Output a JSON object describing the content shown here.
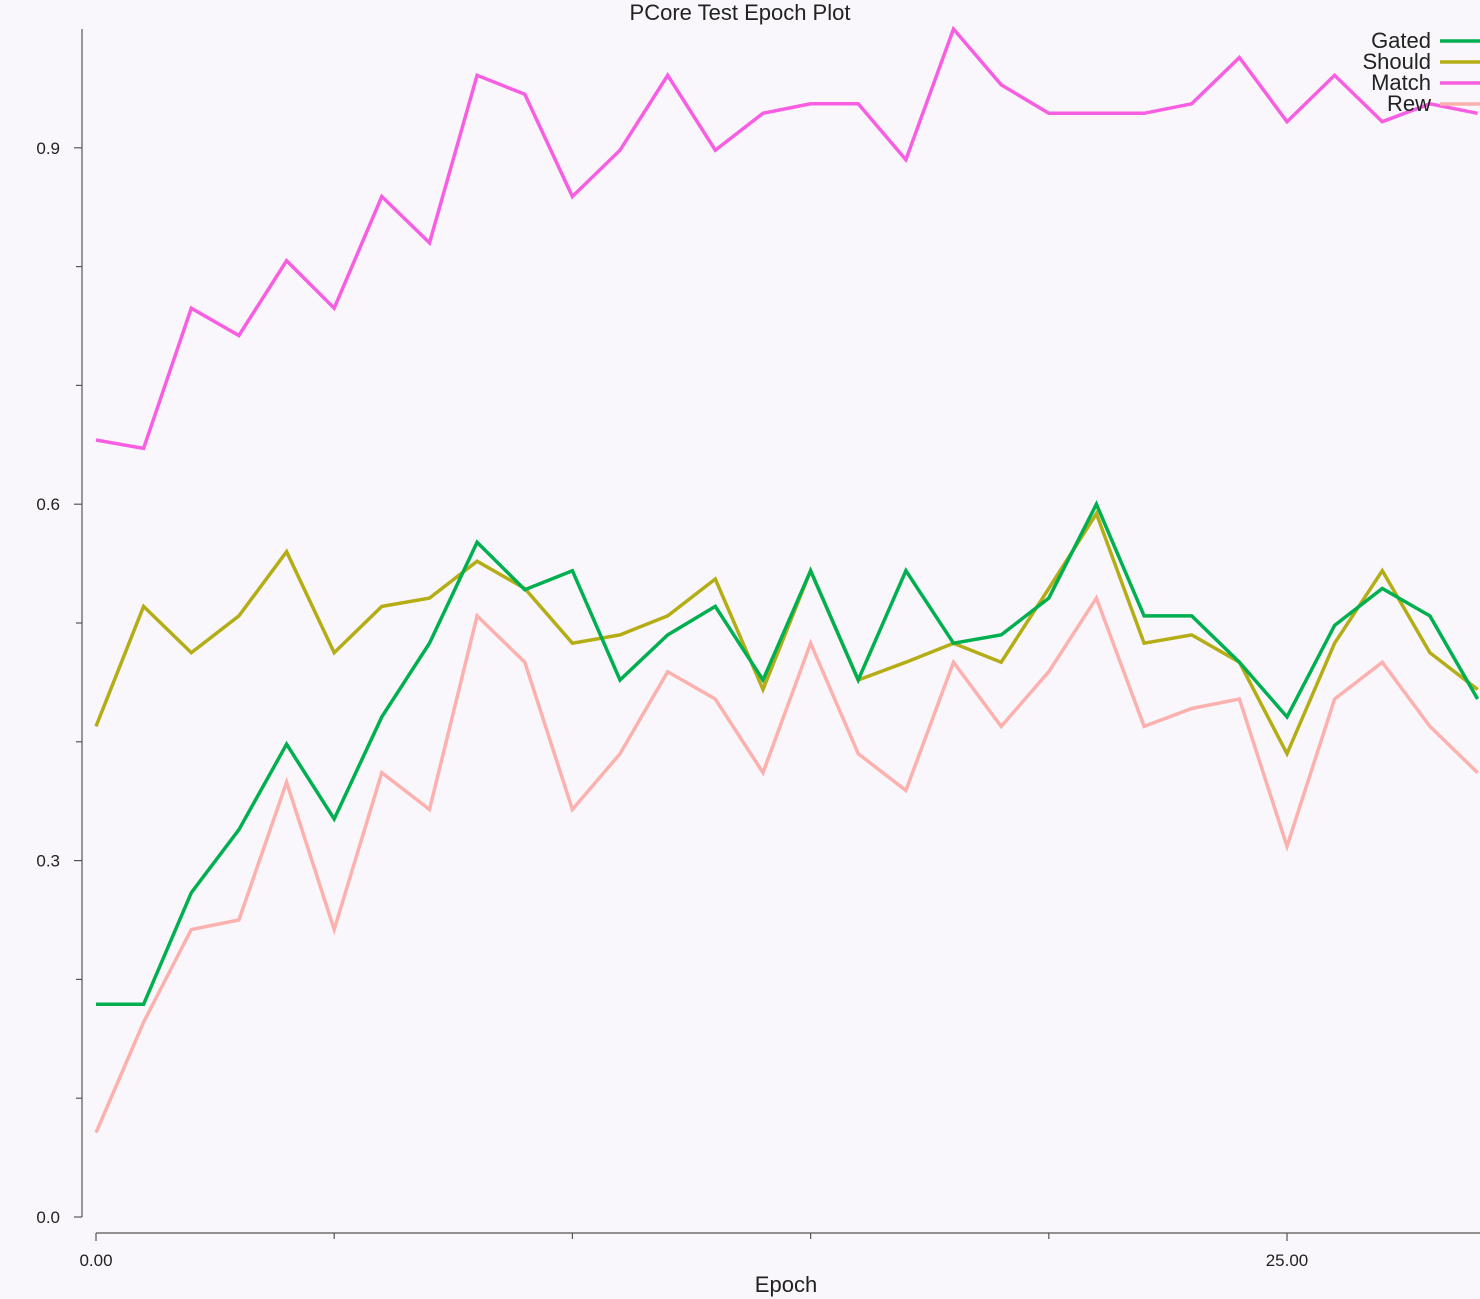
{
  "chart_data": {
    "type": "line",
    "title": "PCore Test Epoch Plot",
    "xlabel": "Epoch",
    "ylabel": "",
    "xlim": [
      0,
      29
    ],
    "ylim": [
      0,
      1.0
    ],
    "x_ticks_major": [
      0,
      25
    ],
    "x_tick_labels": [
      "0.00",
      "25.00"
    ],
    "x_ticks_minor": [
      5,
      10,
      15,
      20
    ],
    "y_ticks_major": [
      0,
      0.3,
      0.6,
      0.9
    ],
    "y_tick_labels": [
      "0.0",
      "0.3",
      "0.6",
      "0.9"
    ],
    "y_ticks_minor": [
      0.1,
      0.2,
      0.4,
      0.5,
      0.7,
      0.8
    ],
    "grid": false,
    "legend_position": "top-right",
    "x": [
      0,
      1,
      2,
      3,
      4,
      5,
      6,
      7,
      8,
      9,
      10,
      11,
      12,
      13,
      14,
      15,
      16,
      17,
      18,
      19,
      20,
      21,
      22,
      23,
      24,
      25,
      26,
      27,
      28,
      29
    ],
    "series": [
      {
        "name": "Gated",
        "color": "#00b050",
        "values": [
          0.179,
          0.179,
          0.273,
          0.326,
          0.398,
          0.335,
          0.421,
          0.483,
          0.568,
          0.528,
          0.544,
          0.452,
          0.49,
          0.514,
          0.452,
          0.544,
          0.452,
          0.544,
          0.483,
          0.49,
          0.521,
          0.6,
          0.506,
          0.506,
          0.467,
          0.421,
          0.498,
          0.529,
          0.506,
          0.436
        ]
      },
      {
        "name": "Should",
        "color": "#b5ad16",
        "values": [
          0.413,
          0.514,
          0.475,
          0.506,
          0.56,
          0.475,
          0.514,
          0.521,
          0.552,
          0.529,
          0.483,
          0.49,
          0.506,
          0.537,
          0.444,
          0.544,
          0.452,
          0.467,
          0.483,
          0.467,
          0.529,
          0.592,
          0.483,
          0.49,
          0.467,
          0.39,
          0.483,
          0.544,
          0.475,
          0.444
        ]
      },
      {
        "name": "Match",
        "color": "#f85ee2",
        "values": [
          0.654,
          0.647,
          0.765,
          0.742,
          0.805,
          0.765,
          0.859,
          0.82,
          0.961,
          0.945,
          0.859,
          0.898,
          0.961,
          0.898,
          0.929,
          0.937,
          0.937,
          0.89,
          1.0,
          0.953,
          0.929,
          0.929,
          0.929,
          0.937,
          0.976,
          0.922,
          0.961,
          0.922,
          0.937,
          0.929
        ]
      },
      {
        "name": "Rew",
        "color": "#fcb1ae",
        "values": [
          0.071,
          0.164,
          0.242,
          0.25,
          0.366,
          0.242,
          0.374,
          0.343,
          0.506,
          0.467,
          0.343,
          0.39,
          0.459,
          0.436,
          0.374,
          0.483,
          0.39,
          0.359,
          0.467,
          0.413,
          0.459,
          0.521,
          0.413,
          0.428,
          0.436,
          0.312,
          0.436,
          0.467,
          0.413,
          0.374
        ]
      }
    ]
  }
}
